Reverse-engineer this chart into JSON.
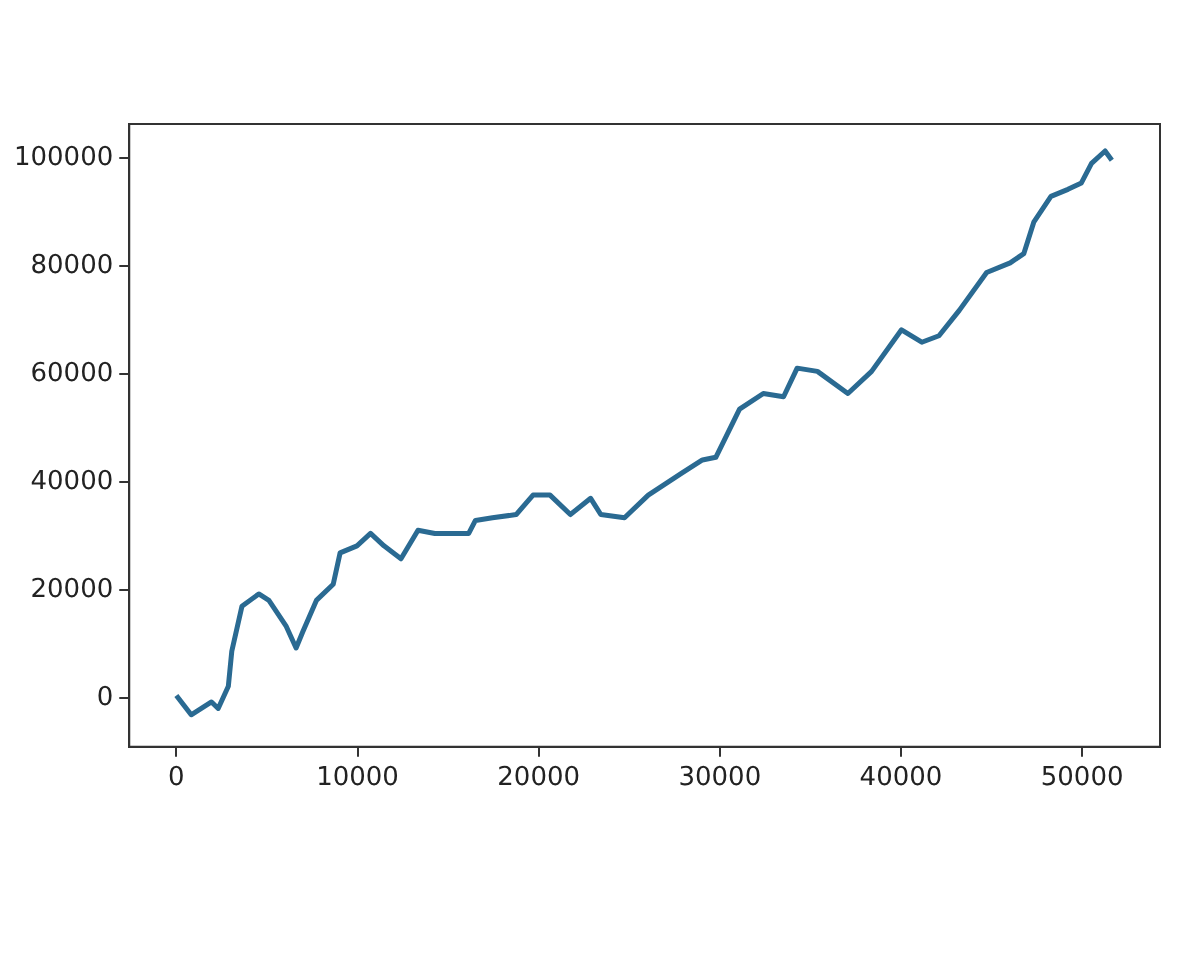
{
  "chart_data": {
    "type": "line",
    "xlim": [
      -2600,
      54300
    ],
    "ylim": [
      -9000,
      106300
    ],
    "xticks": [
      0,
      10000,
      20000,
      30000,
      40000,
      50000
    ],
    "yticks": [
      0,
      20000,
      40000,
      60000,
      80000,
      100000
    ],
    "grid": false,
    "legend": false,
    "marker": "none",
    "line_style": "solid",
    "x": [
      0,
      820,
      1940,
      2310,
      2870,
      3060,
      3620,
      4550,
      5110,
      6050,
      6610,
      6980,
      7730,
      8660,
      9040,
      9970,
      10720,
      11460,
      12400,
      13340,
      14270,
      15390,
      16140,
      16510,
      17450,
      18760,
      19690,
      20630,
      21750,
      22870,
      23430,
      24740,
      26050,
      27920,
      29040,
      29780,
      31090,
      32400,
      33520,
      34270,
      35390,
      37070,
      38380,
      40030,
      41150,
      42100,
      43220,
      44730,
      46030,
      46780,
      47340,
      48280,
      49220,
      49960,
      50520,
      51270,
      51640
    ],
    "series": [
      {
        "color": "#2a6a92",
        "values": [
          500,
          -3070,
          -700,
          -1900,
          2200,
          8700,
          17000,
          19300,
          18100,
          13400,
          9300,
          12300,
          18100,
          21100,
          26900,
          28200,
          30500,
          28200,
          25800,
          31100,
          30500,
          30500,
          30500,
          32900,
          33400,
          34000,
          37600,
          37600,
          34000,
          37000,
          34000,
          33400,
          37600,
          41700,
          44100,
          44600,
          53500,
          56400,
          55800,
          61100,
          60500,
          56400,
          60500,
          68200,
          65900,
          67100,
          71800,
          78800,
          80600,
          82300,
          88200,
          92900,
          94200,
          95400,
          99000,
          101300,
          99600
        ]
      }
    ]
  }
}
